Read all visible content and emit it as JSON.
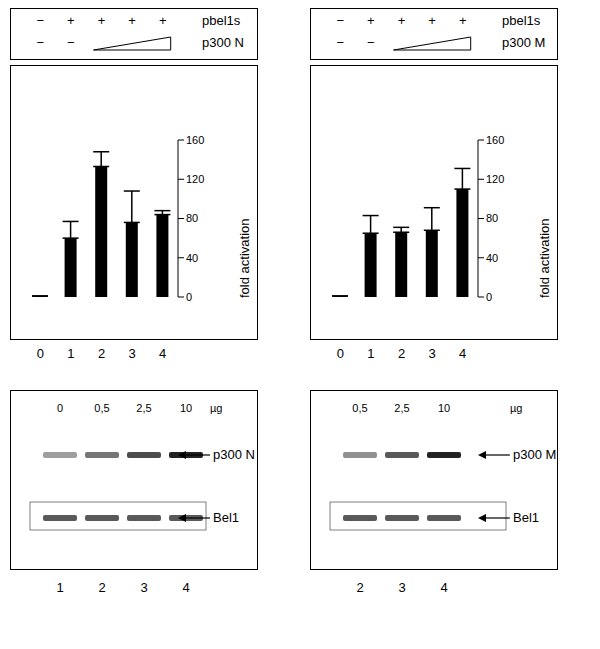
{
  "chart_data": [
    {
      "type": "bar",
      "categories": [
        "0",
        "1",
        "2",
        "3",
        "4"
      ],
      "values": [
        1,
        60,
        133,
        76,
        84
      ],
      "errors": [
        0,
        17,
        15,
        32,
        4
      ],
      "color": "#000000",
      "y_label": "fold activation",
      "ylim": [
        0,
        160
      ],
      "yticks": [
        0,
        40,
        80,
        120,
        160
      ],
      "header": {
        "rows": [
          {
            "label": "pbel1s",
            "signs": [
              "−",
              "+",
              "+",
              "+",
              "+"
            ]
          },
          {
            "label": "p300 N",
            "signs": [
              "−",
              "−"
            ]
          }
        ]
      },
      "blot": {
        "amounts": [
          "0",
          "0,5",
          "2,5",
          "10"
        ],
        "unit": "µg",
        "bands": [
          "p300 N",
          "Bel1"
        ],
        "lanes": [
          "1",
          "2",
          "3",
          "4"
        ]
      }
    },
    {
      "type": "bar",
      "categories": [
        "0",
        "1",
        "2",
        "3",
        "4"
      ],
      "values": [
        1,
        65,
        66,
        68,
        110
      ],
      "errors": [
        0,
        18,
        5,
        23,
        21
      ],
      "color": "#000000",
      "y_label": "fold activation",
      "ylim": [
        0,
        160
      ],
      "yticks": [
        0,
        40,
        80,
        120,
        160
      ],
      "header": {
        "rows": [
          {
            "label": "pbel1s",
            "signs": [
              "−",
              "+",
              "+",
              "+",
              "+"
            ]
          },
          {
            "label": "p300 M",
            "signs": [
              "−",
              "−"
            ]
          }
        ]
      },
      "blot": {
        "amounts": [
          "0,5",
          "2,5",
          "10"
        ],
        "unit": "µg",
        "bands": [
          "p300 M",
          "Bel1"
        ],
        "lanes": [
          "2",
          "3",
          "4"
        ]
      }
    }
  ]
}
